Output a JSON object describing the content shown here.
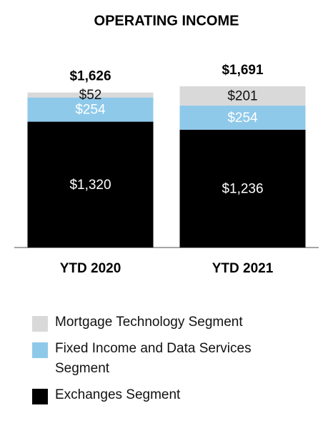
{
  "chart_data": {
    "type": "stacked-bar",
    "title": "OPERATING INCOME",
    "categories": [
      "YTD 2020",
      "YTD 2021"
    ],
    "series": [
      {
        "name": "Exchanges Segment",
        "color": "#000000",
        "label_color": "#ffffff",
        "values": [
          1320,
          1236
        ],
        "value_labels": [
          "$1,320",
          "$1,236"
        ]
      },
      {
        "name": "Fixed Income and Data Services Segment",
        "color": "#8fc9ea",
        "label_color": "#ffffff",
        "values": [
          254,
          254
        ],
        "value_labels": [
          "$254",
          "$254"
        ]
      },
      {
        "name": "Mortgage Technology Segment",
        "color": "#d9d9d9",
        "label_color": "#111111",
        "values": [
          52,
          201
        ],
        "value_labels": [
          "$52",
          "$201"
        ]
      }
    ],
    "totals": {
      "values": [
        1626,
        1691
      ],
      "value_labels": [
        "$1,626",
        "$1,691"
      ]
    }
  }
}
